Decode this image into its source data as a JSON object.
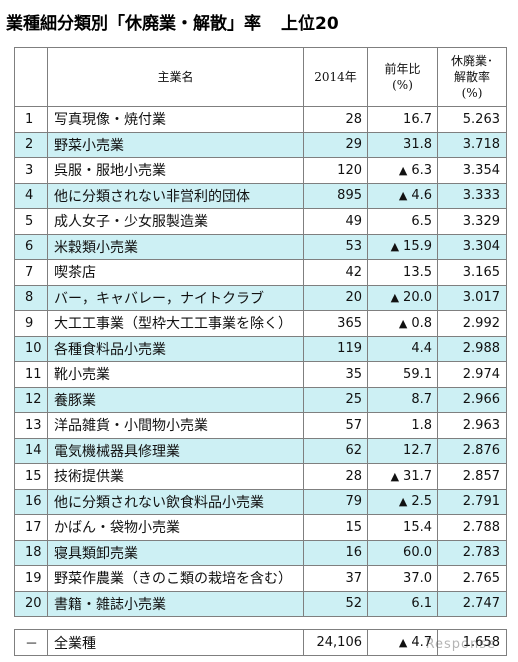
{
  "title": {
    "main": "業種細分類別「休廃業・解散」率",
    "sub": "上位20"
  },
  "header": {
    "rank": "",
    "name": "主業名",
    "year": "2014年",
    "yoy_line1": "前年比",
    "yoy_line2": "(%)",
    "rate_line1": "休廃業･",
    "rate_line2": "解散率",
    "rate_line3": "(%)"
  },
  "rows": [
    {
      "rank": "1",
      "name": "写真現像・焼付業",
      "count": "28",
      "yoy_mark": "",
      "yoy": "16.7",
      "rate": "5.263"
    },
    {
      "rank": "2",
      "name": "野菜小売業",
      "count": "29",
      "yoy_mark": "",
      "yoy": "31.8",
      "rate": "3.718"
    },
    {
      "rank": "3",
      "name": "呉服・服地小売業",
      "count": "120",
      "yoy_mark": "▲",
      "yoy": "6.3",
      "rate": "3.354"
    },
    {
      "rank": "4",
      "name": "他に分類されない非営利的団体",
      "count": "895",
      "yoy_mark": "▲",
      "yoy": "4.6",
      "rate": "3.333"
    },
    {
      "rank": "5",
      "name": "成人女子・少女服製造業",
      "count": "49",
      "yoy_mark": "",
      "yoy": "6.5",
      "rate": "3.329"
    },
    {
      "rank": "6",
      "name": "米穀類小売業",
      "count": "53",
      "yoy_mark": "▲",
      "yoy": "15.9",
      "rate": "3.304"
    },
    {
      "rank": "7",
      "name": "喫茶店",
      "count": "42",
      "yoy_mark": "",
      "yoy": "13.5",
      "rate": "3.165"
    },
    {
      "rank": "8",
      "name": "バー，キャバレー，ナイトクラブ",
      "count": "20",
      "yoy_mark": "▲",
      "yoy": "20.0",
      "rate": "3.017"
    },
    {
      "rank": "9",
      "name": "大工工事業（型枠大工工事業を除く）",
      "count": "365",
      "yoy_mark": "▲",
      "yoy": "0.8",
      "rate": "2.992"
    },
    {
      "rank": "10",
      "name": "各種食料品小売業",
      "count": "119",
      "yoy_mark": "",
      "yoy": "4.4",
      "rate": "2.988"
    },
    {
      "rank": "11",
      "name": "靴小売業",
      "count": "35",
      "yoy_mark": "",
      "yoy": "59.1",
      "rate": "2.974"
    },
    {
      "rank": "12",
      "name": "養豚業",
      "count": "25",
      "yoy_mark": "",
      "yoy": "8.7",
      "rate": "2.966"
    },
    {
      "rank": "13",
      "name": "洋品雑貨・小間物小売業",
      "count": "57",
      "yoy_mark": "",
      "yoy": "1.8",
      "rate": "2.963"
    },
    {
      "rank": "14",
      "name": "電気機械器具修理業",
      "count": "62",
      "yoy_mark": "",
      "yoy": "12.7",
      "rate": "2.876"
    },
    {
      "rank": "15",
      "name": "技術提供業",
      "count": "28",
      "yoy_mark": "▲",
      "yoy": "31.7",
      "rate": "2.857"
    },
    {
      "rank": "16",
      "name": "他に分類されない飲食料品小売業",
      "count": "79",
      "yoy_mark": "▲",
      "yoy": "2.5",
      "rate": "2.791"
    },
    {
      "rank": "17",
      "name": "かばん・袋物小売業",
      "count": "15",
      "yoy_mark": "",
      "yoy": "15.4",
      "rate": "2.788"
    },
    {
      "rank": "18",
      "name": "寝具類卸売業",
      "count": "16",
      "yoy_mark": "",
      "yoy": "60.0",
      "rate": "2.783"
    },
    {
      "rank": "19",
      "name": "野菜作農業（きのこ類の栽培を含む）",
      "count": "37",
      "yoy_mark": "",
      "yoy": "37.0",
      "rate": "2.765"
    },
    {
      "rank": "20",
      "name": "書籍・雑誌小売業",
      "count": "52",
      "yoy_mark": "",
      "yoy": "6.1",
      "rate": "2.747"
    }
  ],
  "total": {
    "rank": "－",
    "name": "全業種",
    "count": "24,106",
    "yoy_mark": "▲",
    "yoy": "4.7",
    "rate": "1.658"
  },
  "watermark": "Response",
  "colors": {
    "shaded_row": "#cdf0f4",
    "border": "#7f7f7f"
  }
}
